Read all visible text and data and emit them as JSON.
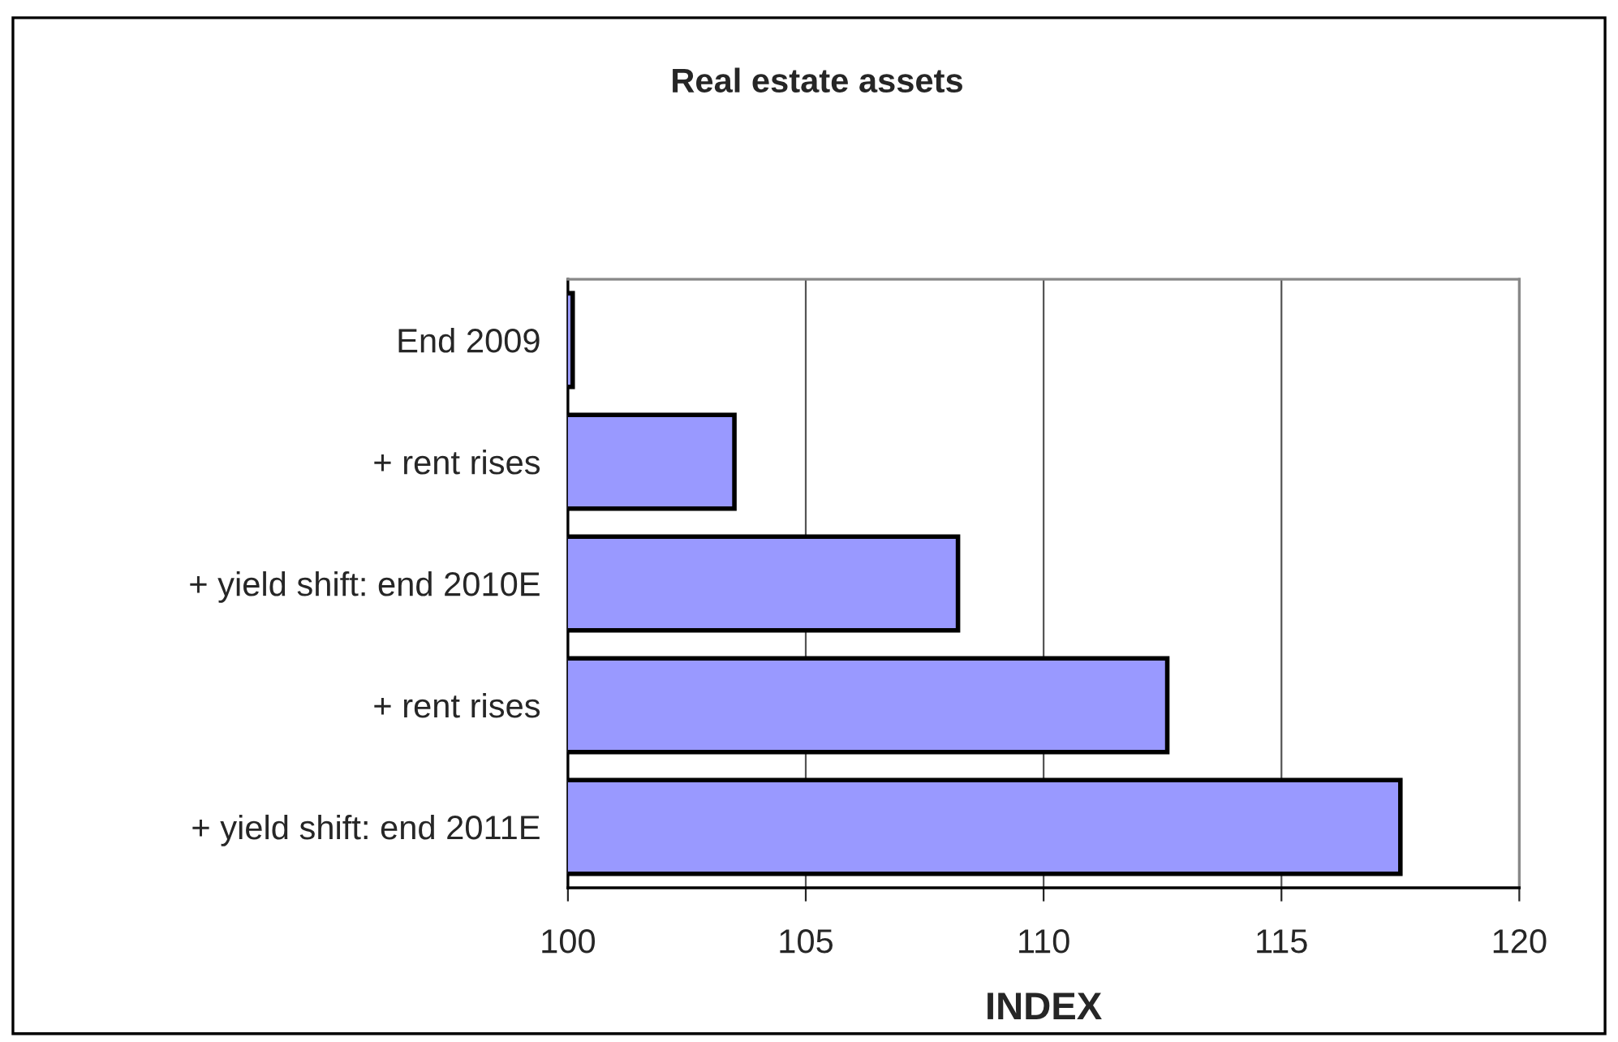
{
  "chart_data": {
    "type": "bar",
    "orientation": "horizontal",
    "title": "Real estate assets",
    "xlabel": "INDEX",
    "categories": [
      "End 2009",
      "+ rent rises",
      "+ yield shift: end 2010E",
      "+ rent rises",
      "+ yield shift: end 2011E"
    ],
    "values": [
      100.1,
      103.5,
      108.2,
      112.6,
      117.5
    ],
    "color": "#9999ff",
    "xlim": [
      100,
      120
    ],
    "xticks": [
      100,
      105,
      110,
      115,
      120
    ],
    "grid": "x"
  }
}
